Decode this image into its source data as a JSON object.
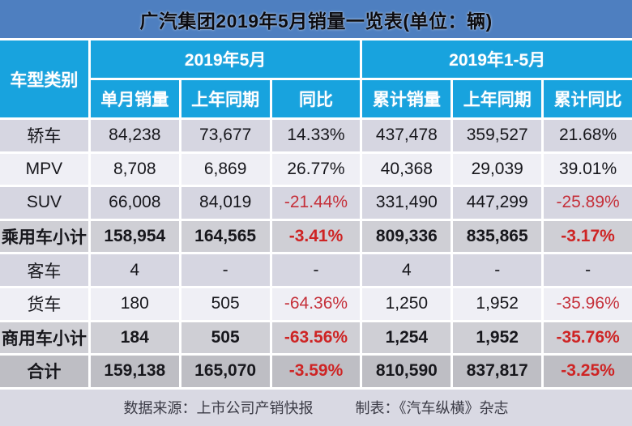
{
  "chart_data": {
    "type": "table",
    "title": "广汽集团2019年5月销量一览表(单位：辆)",
    "corner_header": "车型类别",
    "groups": [
      {
        "label": "2019年5月",
        "sub_columns": [
          "单月销量",
          "上年同期",
          "同比"
        ]
      },
      {
        "label": "2019年1-5月",
        "sub_columns": [
          "累计销量",
          "上年同期",
          "累计同比"
        ]
      }
    ],
    "rows": [
      {
        "label": "轿车",
        "emphasis": false,
        "values": [
          "84,238",
          "73,677",
          "14.33%",
          "437,478",
          "359,527",
          "21.68%"
        ]
      },
      {
        "label": "MPV",
        "emphasis": false,
        "values": [
          "8,708",
          "6,869",
          "26.77%",
          "40,368",
          "29,039",
          "39.01%"
        ]
      },
      {
        "label": "SUV",
        "emphasis": false,
        "values": [
          "66,008",
          "84,019",
          "-21.44%",
          "331,490",
          "447,299",
          "-25.89%"
        ]
      },
      {
        "label": "乘用车小计",
        "emphasis": true,
        "values": [
          "158,954",
          "164,565",
          "-3.41%",
          "809,336",
          "835,865",
          "-3.17%"
        ]
      },
      {
        "label": "客车",
        "emphasis": false,
        "values": [
          "4",
          "-",
          "-",
          "4",
          "-",
          "-"
        ]
      },
      {
        "label": "货车",
        "emphasis": false,
        "values": [
          "180",
          "505",
          "-64.36%",
          "1,250",
          "1,952",
          "-35.96%"
        ]
      },
      {
        "label": "商用车小计",
        "emphasis": true,
        "values": [
          "184",
          "505",
          "-63.56%",
          "1,254",
          "1,952",
          "-35.76%"
        ]
      },
      {
        "label": "合计",
        "emphasis": true,
        "values": [
          "159,138",
          "165,070",
          "-3.59%",
          "810,590",
          "837,817",
          "-3.25%"
        ]
      }
    ]
  },
  "footer": {
    "source": "数据来源：上市公司产销快报",
    "credit": "制表：《汽车纵横》杂志"
  },
  "colors": {
    "title_bar_bg": "#4E7FC0",
    "header_bg": "#18A3DE",
    "header_text": "#FFFFFF",
    "row_alt_bg": "#D6D6E1",
    "row_bg": "#EFEFF5",
    "subtotal_row_bg": "#CFCFD5",
    "total_row_bg": "#BEBEC4",
    "footer_bg": "#D9D9E3",
    "body_text": "#17171C",
    "negative_text": "#C5303A",
    "negative_bold_text": "#CE2424"
  }
}
